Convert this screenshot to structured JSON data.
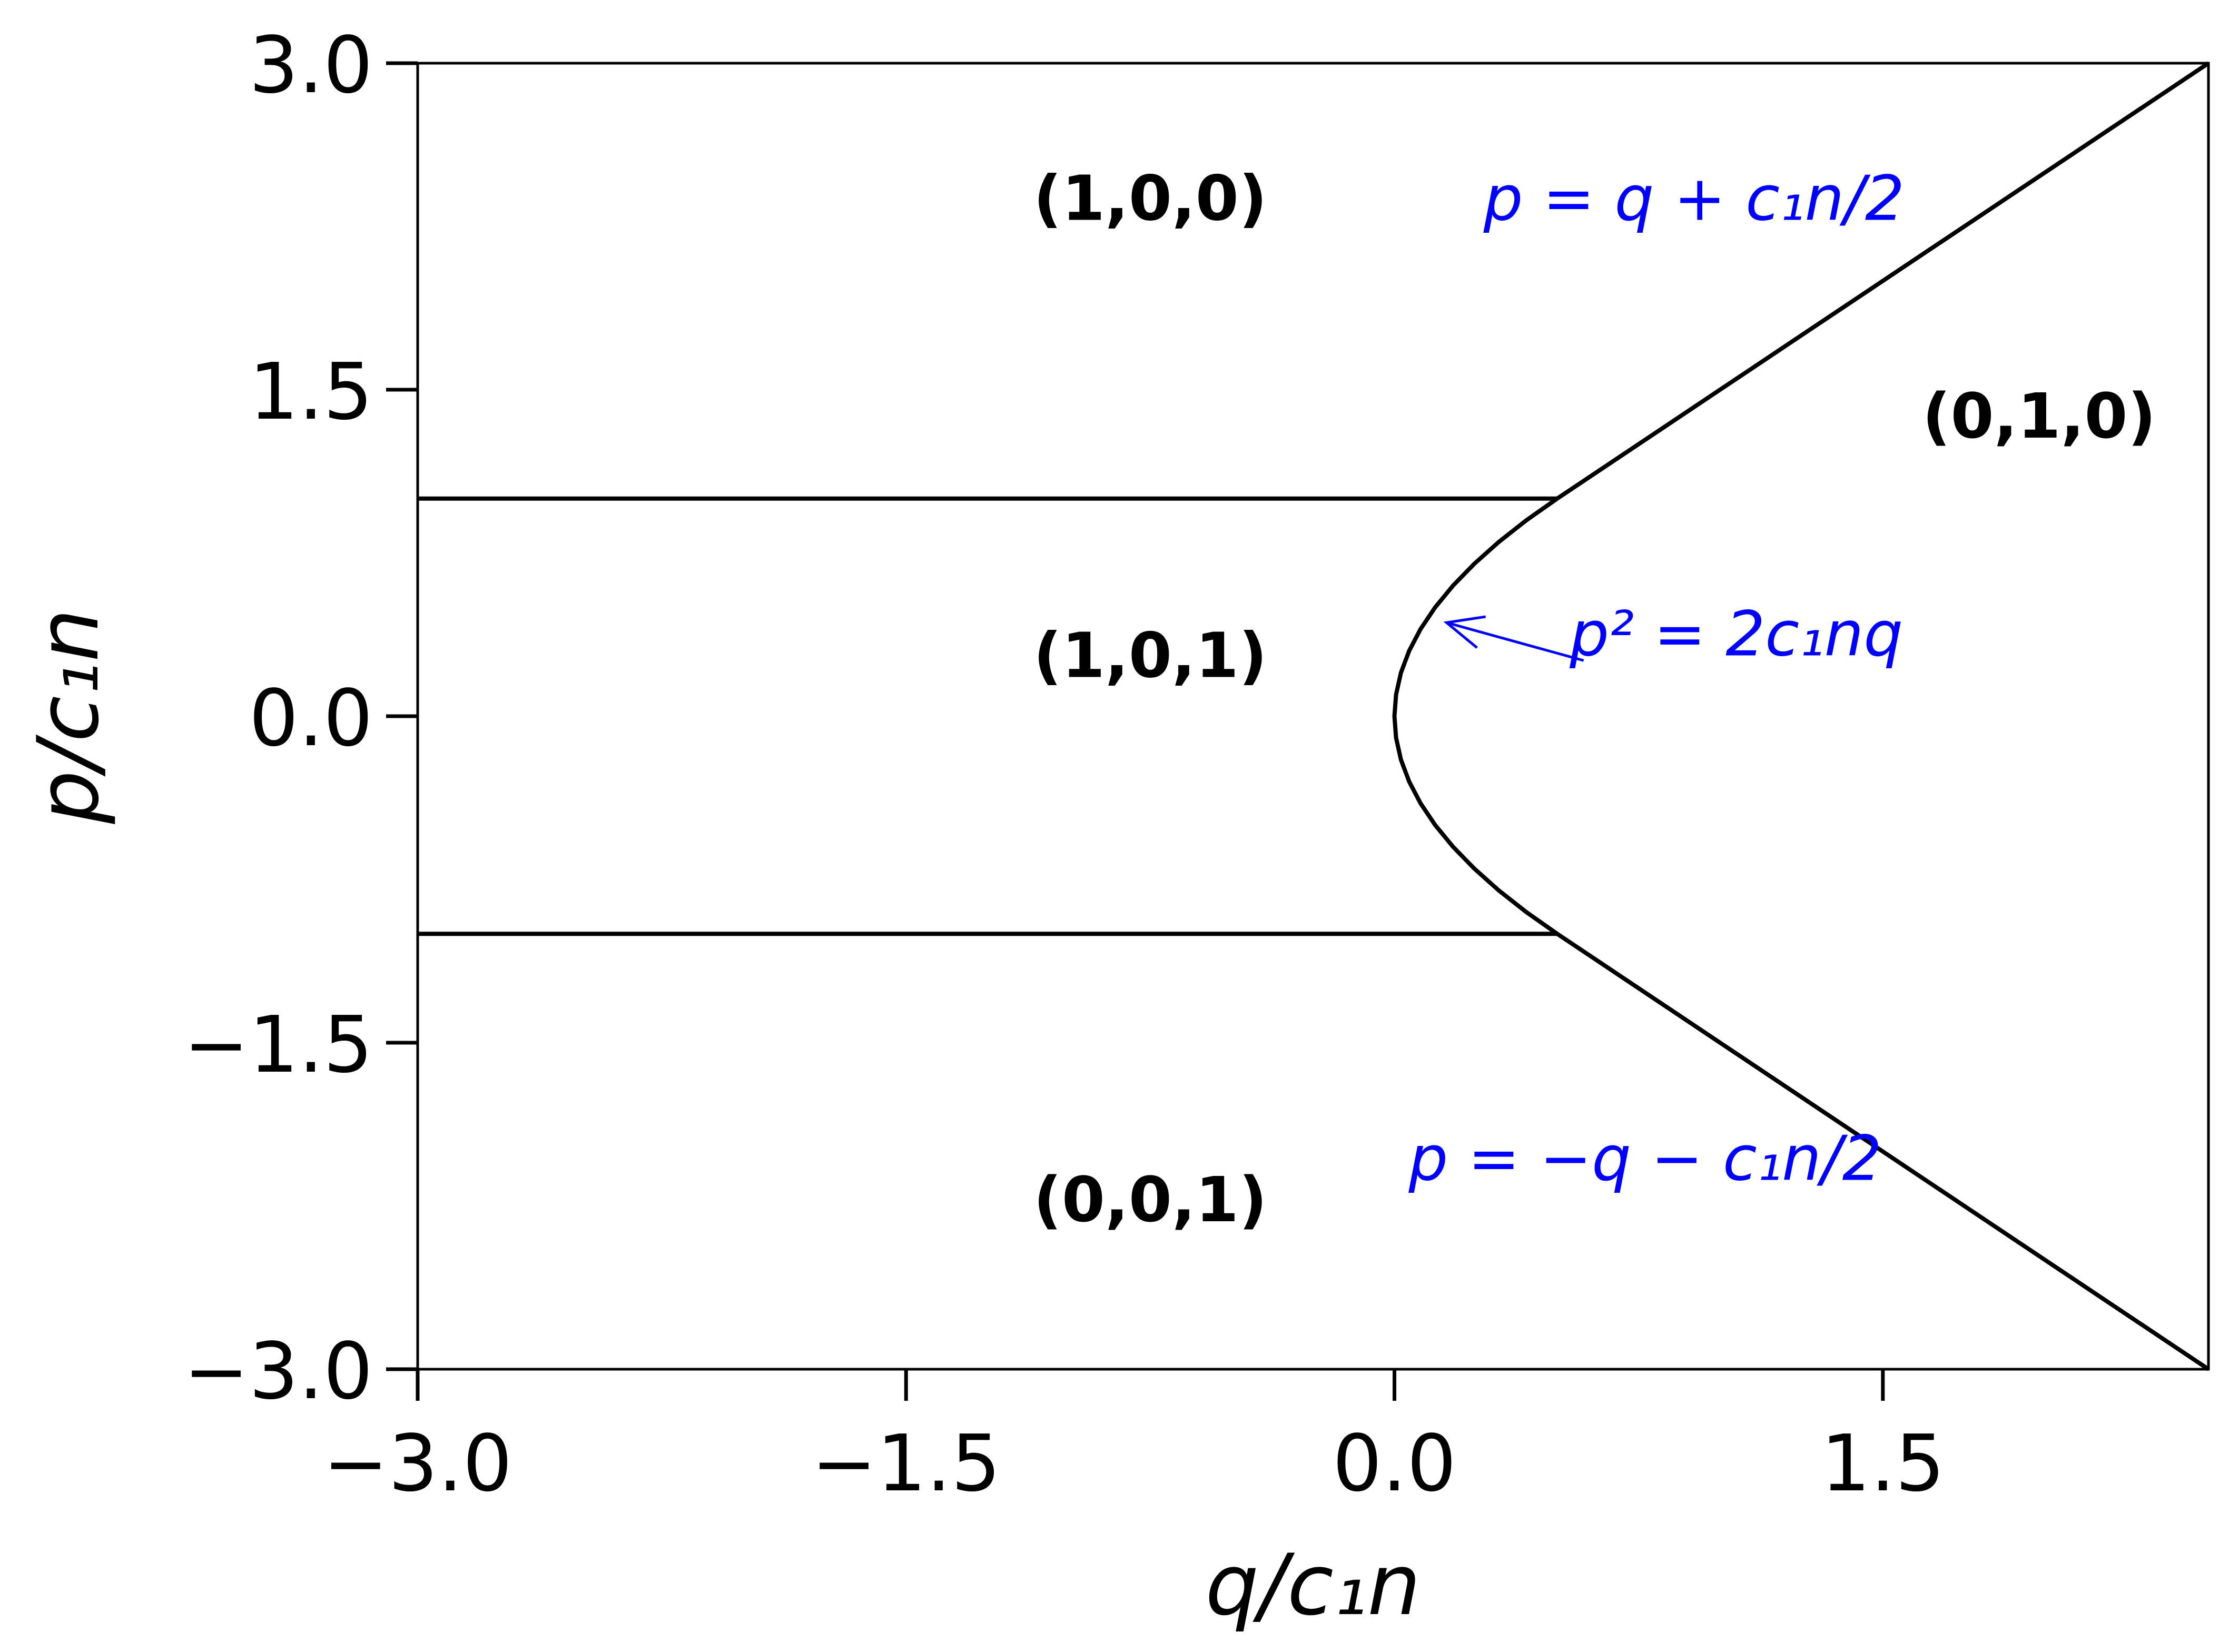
{
  "chart_data": {
    "type": "line",
    "xlabel": "q/c₁n",
    "ylabel": "p/c₁n",
    "xlim": [
      -3.0,
      2.5
    ],
    "ylim": [
      -3.0,
      3.0
    ],
    "xticks": [
      -3.0,
      -1.5,
      0.0,
      1.5
    ],
    "yticks": [
      -3.0,
      -1.5,
      0.0,
      1.5,
      3.0
    ],
    "xtick_labels": [
      "−3.0",
      "−1.5",
      "0.0",
      "1.5"
    ],
    "ytick_labels": [
      "−3.0",
      "−1.5",
      "0.0",
      "1.5",
      "3.0"
    ],
    "grid": false,
    "line_color": "#000000",
    "annotation_color": "#0000ff",
    "series": [
      {
        "x": [
          2.5,
          0.5
        ],
        "y": [
          3.0,
          1.0
        ]
      },
      {
        "x": [
          0.5,
          0.405,
          0.32,
          0.245,
          0.18,
          0.125,
          0.08,
          0.045,
          0.02,
          0.005,
          0.0,
          0.005,
          0.02,
          0.045,
          0.08,
          0.125,
          0.18,
          0.245,
          0.32,
          0.405,
          0.5
        ],
        "y": [
          1.0,
          0.9,
          0.8,
          0.7,
          0.6,
          0.5,
          0.4,
          0.3,
          0.2,
          0.1,
          0.0,
          -0.1,
          -0.2,
          -0.3,
          -0.4,
          -0.5,
          -0.6,
          -0.7,
          -0.8,
          -0.9,
          -1.0
        ]
      },
      {
        "x": [
          0.5,
          2.5
        ],
        "y": [
          -1.0,
          -3.0
        ]
      },
      {
        "x": [
          -3.0,
          0.5
        ],
        "y": [
          1.0,
          1.0
        ]
      },
      {
        "x": [
          -3.0,
          0.5
        ],
        "y": [
          -1.0,
          -1.0
        ]
      }
    ],
    "region_labels": [
      {
        "text": "(1,0,0)",
        "x": -0.75,
        "y": 2.28
      },
      {
        "text": "(0,1,0)",
        "x": 1.98,
        "y": 1.28
      },
      {
        "text": "(1,0,1)",
        "x": -0.75,
        "y": 0.18
      },
      {
        "text": "(0,0,1)",
        "x": -0.75,
        "y": -2.32
      }
    ],
    "annotations": [
      {
        "text": "p = q + c₁n/2",
        "x": 0.92,
        "y": 2.28
      },
      {
        "text": "p² = 2c₁nq",
        "x": 1.05,
        "y": 0.28,
        "arrow_to": {
          "x": 0.16,
          "y": 0.43
        }
      },
      {
        "text": "p = −q − c₁n/2",
        "x": 0.77,
        "y": -2.13
      }
    ]
  }
}
